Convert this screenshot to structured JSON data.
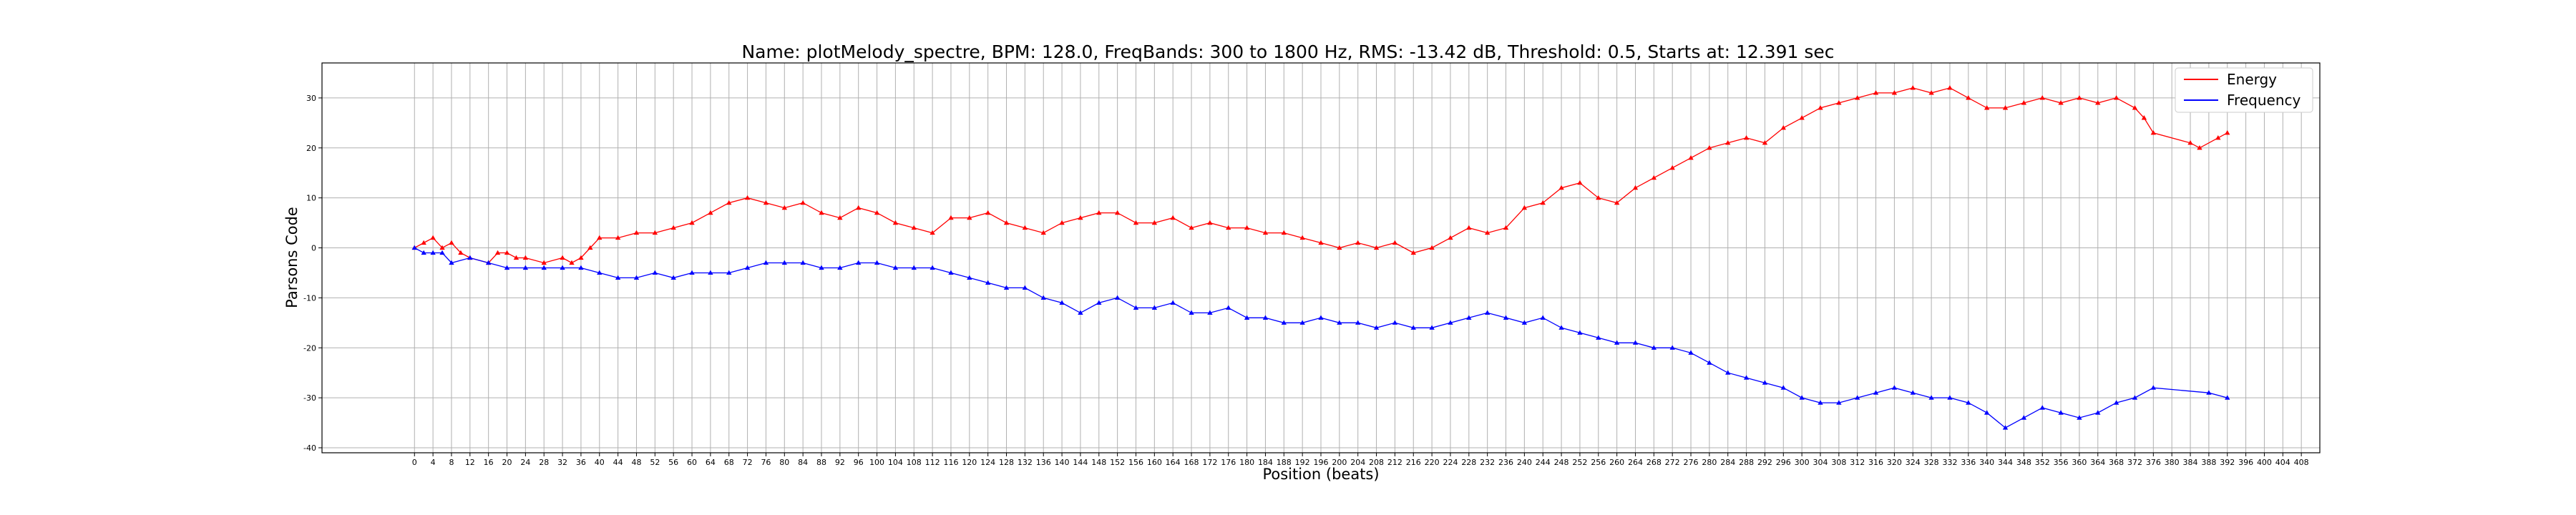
{
  "chart_data": {
    "type": "line",
    "title": "Name: plotMelody_spectre, BPM: 128.0, FreqBands: 300 to 1800 Hz, RMS: -13.42 dB, Threshold: 0.5, Starts at: 12.391 sec",
    "xlabel": "Position (beats)",
    "ylabel": "Parsons Code",
    "xlim": [
      -20,
      412
    ],
    "ylim": [
      -41,
      37
    ],
    "xticks": [
      0,
      4,
      8,
      12,
      16,
      20,
      24,
      28,
      32,
      36,
      40,
      44,
      48,
      52,
      56,
      60,
      64,
      68,
      72,
      76,
      80,
      84,
      88,
      92,
      96,
      100,
      104,
      108,
      112,
      116,
      120,
      124,
      128,
      132,
      136,
      140,
      144,
      148,
      152,
      156,
      160,
      164,
      168,
      172,
      176,
      180,
      184,
      188,
      192,
      196,
      200,
      204,
      208,
      212,
      216,
      220,
      224,
      228,
      232,
      236,
      240,
      244,
      248,
      252,
      256,
      260,
      264,
      268,
      272,
      276,
      280,
      284,
      288,
      292,
      296,
      300,
      304,
      308,
      312,
      316,
      320,
      324,
      328,
      332,
      336,
      340,
      344,
      348,
      352,
      356,
      360,
      364,
      368,
      372,
      376,
      380,
      384,
      388,
      392,
      396,
      400,
      404,
      408
    ],
    "yticks": [
      -40,
      -30,
      -20,
      -10,
      0,
      10,
      20,
      30
    ],
    "grid": true,
    "legend": "top-right",
    "colors": {
      "energy": "#ff0000",
      "frequency": "#0000ff"
    },
    "series": [
      {
        "name": "Energy",
        "color": "#ff0000",
        "x": [
          0,
          2,
          4,
          6,
          8,
          10,
          12,
          16,
          18,
          20,
          22,
          24,
          28,
          32,
          34,
          36,
          38,
          40,
          44,
          48,
          52,
          56,
          60,
          64,
          68,
          72,
          76,
          80,
          84,
          88,
          92,
          96,
          100,
          104,
          108,
          112,
          116,
          120,
          124,
          128,
          132,
          136,
          140,
          144,
          148,
          152,
          156,
          160,
          164,
          168,
          172,
          176,
          180,
          184,
          188,
          192,
          196,
          200,
          204,
          208,
          212,
          216,
          220,
          224,
          228,
          232,
          236,
          240,
          244,
          248,
          252,
          256,
          260,
          264,
          268,
          272,
          276,
          280,
          284,
          288,
          292,
          296,
          300,
          304,
          308,
          312,
          316,
          320,
          324,
          328,
          332,
          336,
          340,
          344,
          348,
          352,
          356,
          360,
          364,
          368,
          372,
          374,
          376,
          384,
          386,
          390,
          392
        ],
        "y": [
          0,
          1,
          2,
          0,
          1,
          -1,
          -2,
          -3,
          -1,
          -1,
          -2,
          -2,
          -3,
          -2,
          -3,
          -2,
          0,
          2,
          2,
          3,
          3,
          4,
          5,
          7,
          9,
          10,
          9,
          8,
          9,
          7,
          6,
          8,
          7,
          5,
          4,
          3,
          6,
          6,
          7,
          5,
          4,
          3,
          5,
          6,
          7,
          7,
          5,
          5,
          6,
          4,
          5,
          4,
          4,
          3,
          3,
          2,
          1,
          0,
          1,
          0,
          1,
          -1,
          0,
          2,
          4,
          3,
          4,
          8,
          9,
          12,
          13,
          10,
          9,
          12,
          14,
          16,
          18,
          20,
          21,
          22,
          21,
          24,
          26,
          28,
          29,
          30,
          31,
          31,
          32,
          31,
          32,
          30,
          28,
          28,
          29,
          30,
          29,
          30,
          29,
          30,
          28,
          26,
          23,
          21,
          20,
          22,
          23
        ]
      },
      {
        "name": "Frequency",
        "color": "#0000ff",
        "x": [
          0,
          2,
          4,
          6,
          8,
          12,
          16,
          20,
          24,
          28,
          32,
          36,
          40,
          44,
          48,
          52,
          56,
          60,
          64,
          68,
          72,
          76,
          80,
          84,
          88,
          92,
          96,
          100,
          104,
          108,
          112,
          116,
          120,
          124,
          128,
          132,
          136,
          140,
          144,
          148,
          152,
          156,
          160,
          164,
          168,
          172,
          176,
          180,
          184,
          188,
          192,
          196,
          200,
          204,
          208,
          212,
          216,
          220,
          224,
          228,
          232,
          236,
          240,
          244,
          248,
          252,
          256,
          260,
          264,
          268,
          272,
          276,
          280,
          284,
          288,
          292,
          296,
          300,
          304,
          308,
          312,
          316,
          320,
          324,
          328,
          332,
          336,
          340,
          344,
          348,
          352,
          356,
          360,
          364,
          368,
          372,
          376,
          388,
          392
        ],
        "y": [
          0,
          -1,
          -1,
          -1,
          -3,
          -2,
          -3,
          -4,
          -4,
          -4,
          -4,
          -4,
          -5,
          -6,
          -6,
          -5,
          -6,
          -5,
          -5,
          -5,
          -4,
          -3,
          -3,
          -3,
          -4,
          -4,
          -3,
          -3,
          -4,
          -4,
          -4,
          -5,
          -6,
          -7,
          -8,
          -8,
          -10,
          -11,
          -13,
          -11,
          -10,
          -12,
          -12,
          -11,
          -13,
          -13,
          -12,
          -14,
          -14,
          -15,
          -15,
          -14,
          -15,
          -15,
          -16,
          -15,
          -16,
          -16,
          -15,
          -14,
          -13,
          -14,
          -15,
          -14,
          -16,
          -17,
          -18,
          -19,
          -19,
          -20,
          -20,
          -21,
          -23,
          -25,
          -26,
          -27,
          -28,
          -30,
          -31,
          -31,
          -30,
          -29,
          -28,
          -29,
          -30,
          -30,
          -31,
          -33,
          -36,
          -34,
          -32,
          -33,
          -34,
          -33,
          -31,
          -30,
          -28,
          -29,
          -30
        ]
      }
    ]
  }
}
